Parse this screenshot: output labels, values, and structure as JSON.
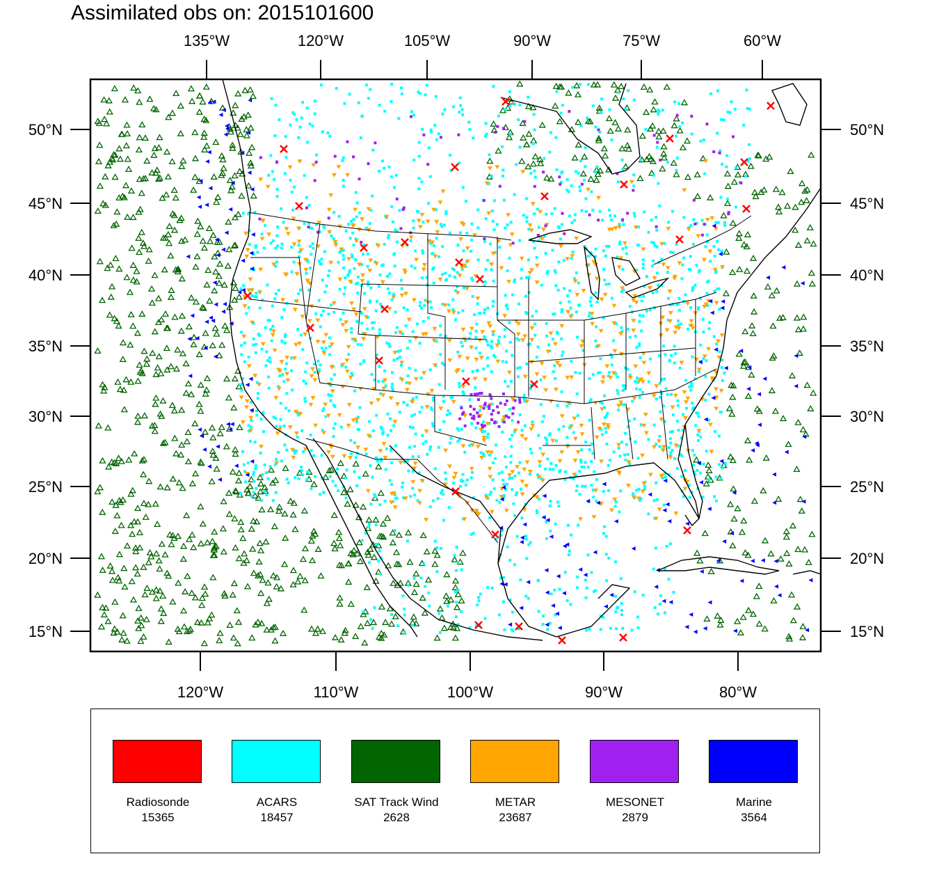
{
  "title": "Assimilated obs on: 2015101600",
  "top_lon_ticks": [
    "135°W",
    "120°W",
    "105°W",
    "90°W",
    "75°W",
    "60°W"
  ],
  "bottom_lon_ticks": [
    "120°W",
    "110°W",
    "100°W",
    "90°W",
    "80°W"
  ],
  "lat_ticks": [
    "50°N",
    "45°N",
    "40°N",
    "35°N",
    "30°N",
    "25°N",
    "20°N",
    "15°N"
  ],
  "legend": [
    {
      "label": "Radiosonde",
      "count": "15365",
      "color": "#ff0000"
    },
    {
      "label": "ACARS",
      "count": "18457",
      "color": "#00ffff"
    },
    {
      "label": "SAT Track Wind",
      "count": "2628",
      "color": "#006400"
    },
    {
      "label": "METAR",
      "count": "23687",
      "color": "#ffa500"
    },
    {
      "label": "MESONET",
      "count": "2879",
      "color": "#a020f0"
    },
    {
      "label": "Marine",
      "count": "3564",
      "color": "#0000ff"
    }
  ]
}
